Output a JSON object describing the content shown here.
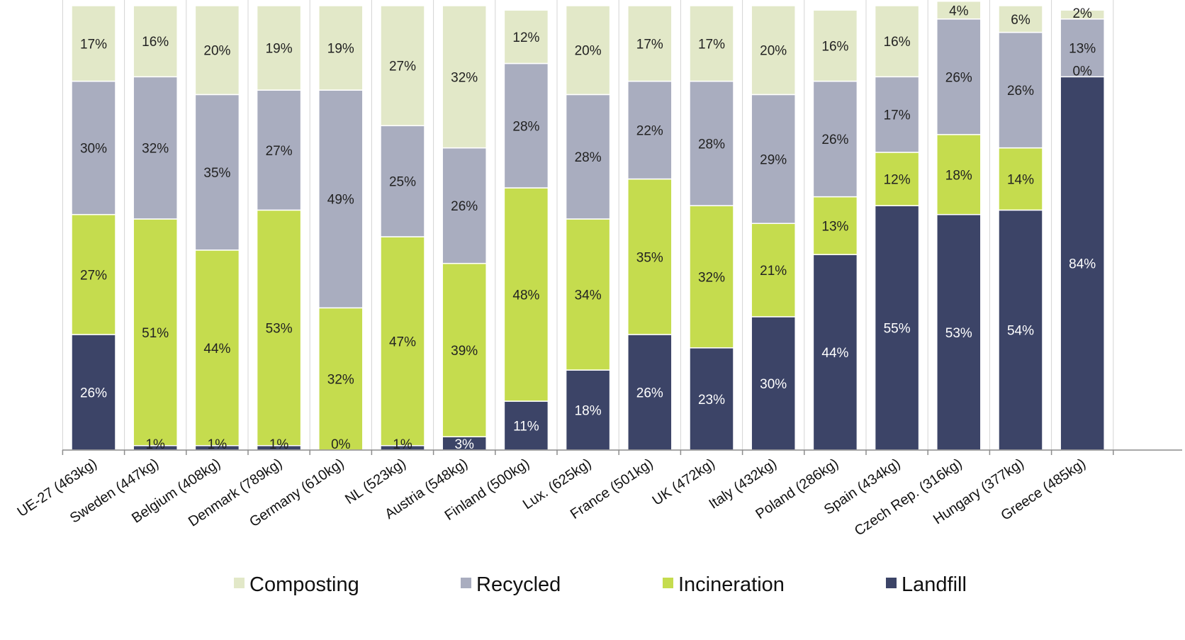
{
  "chart_data": {
    "type": "bar",
    "stacked": true,
    "normalized": true,
    "categories": [
      "UE-27 (463kg)",
      "Sweden (447kg)",
      "Belgium (408kg)",
      "Denmark (789kg)",
      "Germany (610kg)",
      "NL (523kg)",
      "Austria (548kg)",
      "Finland (500kg)",
      "Lux. (625kg)",
      "France (501kg)",
      "UK (472kg)",
      "Italy (432kg)",
      "Poland (286kg)",
      "Spain (434kg)",
      "Czech Rep. (316kg)",
      "Hungary (377kg)",
      "Greece (485kg)"
    ],
    "series": [
      {
        "name": "Landfill",
        "color": "#3c4467",
        "label_color": "#ffffff",
        "values": [
          26,
          1,
          1,
          1,
          0,
          1,
          3,
          11,
          18,
          26,
          23,
          30,
          44,
          55,
          53,
          54,
          84
        ],
        "labels": [
          "26%",
          "1%",
          "1%",
          "1%",
          "0%",
          "1%",
          "3%",
          "11%",
          "18%",
          "26%",
          "23%",
          "30%",
          "44%",
          "55%",
          "53%",
          "54%",
          "84%"
        ]
      },
      {
        "name": "Incineration",
        "color": "#c5dc4e",
        "label_color": "#222222",
        "values": [
          27,
          51,
          44,
          53,
          32,
          47,
          39,
          48,
          34,
          35,
          32,
          21,
          13,
          12,
          18,
          14,
          0
        ],
        "labels": [
          "27%",
          "51%",
          "44%",
          "53%",
          "32%",
          "47%",
          "39%",
          "48%",
          "34%",
          "35%",
          "32%",
          "21%",
          "13%",
          "12%",
          "18%",
          "14%",
          "0%"
        ]
      },
      {
        "name": "Recycled",
        "color": "#a9adbf",
        "label_color": "#222222",
        "values": [
          30,
          32,
          35,
          27,
          49,
          25,
          26,
          28,
          28,
          22,
          28,
          29,
          26,
          17,
          26,
          26,
          13
        ],
        "labels": [
          "30%",
          "32%",
          "35%",
          "27%",
          "49%",
          "25%",
          "26%",
          "28%",
          "28%",
          "22%",
          "28%",
          "29%",
          "26%",
          "17%",
          "26%",
          "26%",
          "13%"
        ]
      },
      {
        "name": "Composting",
        "color": "#e2e8c8",
        "label_color": "#222222",
        "values": [
          17,
          16,
          20,
          19,
          19,
          27,
          32,
          12,
          20,
          17,
          17,
          20,
          16,
          16,
          4,
          6,
          2
        ],
        "labels": [
          "17%",
          "16%",
          "20%",
          "19%",
          "19%",
          "27%",
          "32%",
          "12%",
          "20%",
          "17%",
          "17%",
          "20%",
          "16%",
          "16%",
          "4%",
          "6%",
          "2%"
        ]
      }
    ],
    "legend_order": [
      "Composting",
      "Recycled",
      "Incineration",
      "Landfill"
    ],
    "legend_position": "bottom",
    "ylim": [
      0,
      100
    ],
    "grid": false,
    "title": "",
    "xlabel": "",
    "ylabel": ""
  }
}
